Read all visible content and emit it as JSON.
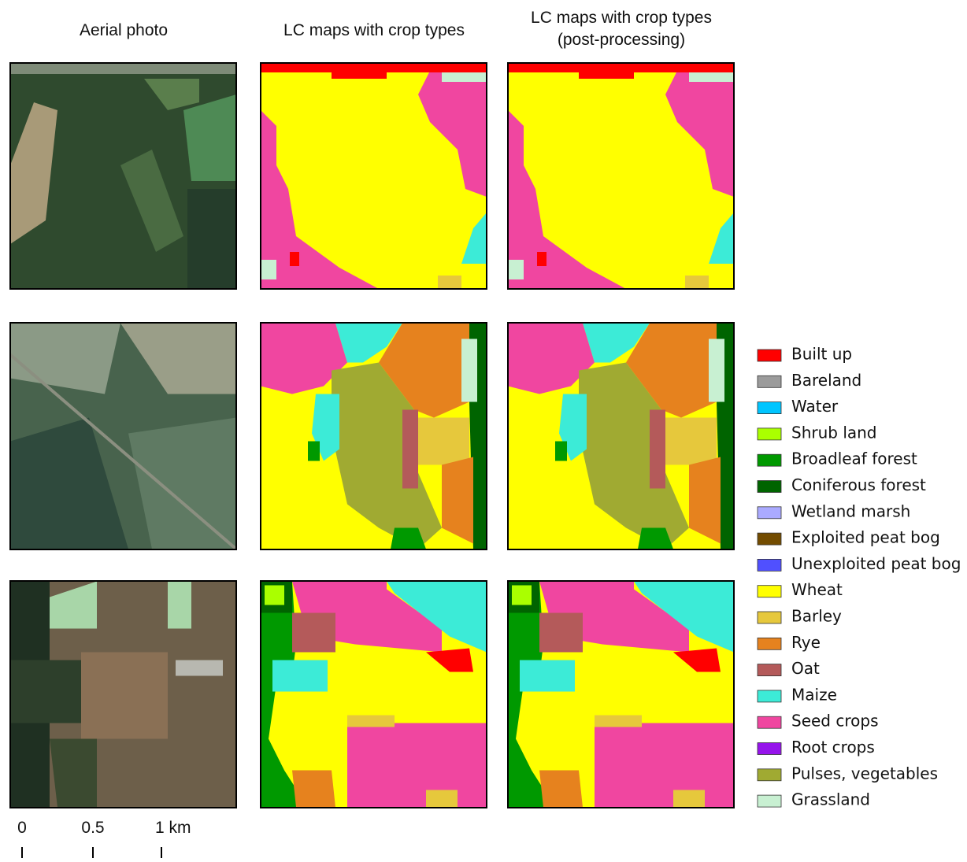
{
  "header": {
    "columns": [
      {
        "lines": [
          "Aerial photo"
        ]
      },
      {
        "lines": [
          "LC maps with crop types"
        ]
      },
      {
        "lines": [
          "LC maps with crop types",
          "(post-processing)"
        ]
      }
    ]
  },
  "legend": {
    "items": [
      {
        "label": "Built up",
        "color": "#ff0000"
      },
      {
        "label": "Bareland",
        "color": "#9b9b9b"
      },
      {
        "label": "Water",
        "color": "#00c5ff"
      },
      {
        "label": "Shrub land",
        "color": "#aaff00"
      },
      {
        "label": "Broadleaf forest",
        "color": "#009900"
      },
      {
        "label": "Coniferous forest",
        "color": "#006400"
      },
      {
        "label": "Wetland marsh",
        "color": "#aaaaff"
      },
      {
        "label": "Exploited peat bog",
        "color": "#734c00"
      },
      {
        "label": "Unexploited peat bog",
        "color": "#5050ff"
      },
      {
        "label": "Wheat",
        "color": "#ffff00"
      },
      {
        "label": "Barley",
        "color": "#e6c83c"
      },
      {
        "label": "Rye",
        "color": "#e6821e"
      },
      {
        "label": "Oat",
        "color": "#b45a5a"
      },
      {
        "label": "Maize",
        "color": "#3cebd7"
      },
      {
        "label": "Seed crops",
        "color": "#f046a0"
      },
      {
        "label": "Root crops",
        "color": "#9614eb"
      },
      {
        "label": "Pulses, vegetables",
        "color": "#a0aa32"
      },
      {
        "label": "Grassland",
        "color": "#c8f0d2"
      }
    ]
  },
  "scale_bar": {
    "labels": [
      "0",
      "0.5",
      "1 km"
    ]
  }
}
